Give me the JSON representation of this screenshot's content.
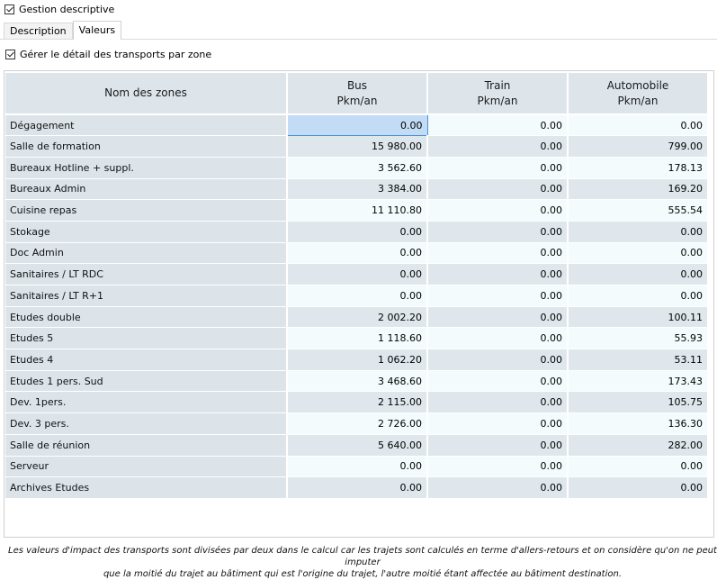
{
  "top_checkbox": {
    "label": "Gestion descriptive",
    "checked": true
  },
  "tabs": [
    {
      "label": "Description",
      "active": false
    },
    {
      "label": "Valeurs",
      "active": true
    }
  ],
  "detail_checkbox": {
    "label": "Gérer le détail des transports par zone",
    "checked": true
  },
  "table": {
    "headers": {
      "zone": "Nom des zones",
      "bus": [
        "Bus",
        "Pkm/an"
      ],
      "train": [
        "Train",
        "Pkm/an"
      ],
      "auto": [
        "Automobile",
        "Pkm/an"
      ]
    },
    "rows": [
      {
        "zone": "Dégagement",
        "bus": "0.00",
        "train": "0.00",
        "auto": "0.00"
      },
      {
        "zone": "Salle de formation",
        "bus": "15 980.00",
        "train": "0.00",
        "auto": "799.00"
      },
      {
        "zone": "Bureaux Hotline + suppl.",
        "bus": "3 562.60",
        "train": "0.00",
        "auto": "178.13"
      },
      {
        "zone": "Bureaux Admin",
        "bus": "3 384.00",
        "train": "0.00",
        "auto": "169.20"
      },
      {
        "zone": "Cuisine repas",
        "bus": "11 110.80",
        "train": "0.00",
        "auto": "555.54"
      },
      {
        "zone": "Stokage",
        "bus": "0.00",
        "train": "0.00",
        "auto": "0.00"
      },
      {
        "zone": "Doc Admin",
        "bus": "0.00",
        "train": "0.00",
        "auto": "0.00"
      },
      {
        "zone": "Sanitaires / LT RDC",
        "bus": "0.00",
        "train": "0.00",
        "auto": "0.00"
      },
      {
        "zone": "Sanitaires / LT R+1",
        "bus": "0.00",
        "train": "0.00",
        "auto": "0.00"
      },
      {
        "zone": "Etudes double",
        "bus": "2 002.20",
        "train": "0.00",
        "auto": "100.11"
      },
      {
        "zone": "Etudes 5",
        "bus": "1 118.60",
        "train": "0.00",
        "auto": "55.93"
      },
      {
        "zone": "Etudes 4",
        "bus": "1 062.20",
        "train": "0.00",
        "auto": "53.11"
      },
      {
        "zone": "Etudes 1 pers. Sud",
        "bus": "3 468.60",
        "train": "0.00",
        "auto": "173.43"
      },
      {
        "zone": "Dev. 1pers.",
        "bus": "2 115.00",
        "train": "0.00",
        "auto": "105.75"
      },
      {
        "zone": "Dev. 3 pers.",
        "bus": "2 726.00",
        "train": "0.00",
        "auto": "136.30"
      },
      {
        "zone": "Salle de réunion",
        "bus": "5 640.00",
        "train": "0.00",
        "auto": "282.00"
      },
      {
        "zone": "Serveur",
        "bus": "0.00",
        "train": "0.00",
        "auto": "0.00"
      },
      {
        "zone": "Archives Etudes",
        "bus": "0.00",
        "train": "0.00",
        "auto": "0.00"
      }
    ]
  },
  "note": {
    "line1": "Les valeurs d'impact des transports sont divisées par deux dans le calcul car les trajets sont calculés en terme d'allers-retours et on considère qu'on ne peut imputer",
    "line2": "que la moitié du trajet au bâtiment qui est l'origine du trajet, l'autre moitié étant affectée au bâtiment destination."
  }
}
